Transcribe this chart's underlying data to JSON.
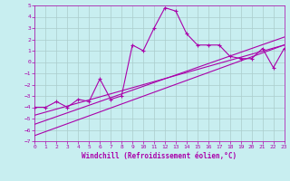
{
  "xlabel": "Windchill (Refroidissement éolien,°C)",
  "xlim": [
    0,
    23
  ],
  "ylim": [
    -7,
    5
  ],
  "xticks": [
    0,
    1,
    2,
    3,
    4,
    5,
    6,
    7,
    8,
    9,
    10,
    11,
    12,
    13,
    14,
    15,
    16,
    17,
    18,
    19,
    20,
    21,
    22,
    23
  ],
  "yticks": [
    -7,
    -6,
    -5,
    -4,
    -3,
    -2,
    -1,
    0,
    1,
    2,
    3,
    4,
    5
  ],
  "bg_color": "#c8eef0",
  "line_color": "#aa00aa",
  "grid_color": "#aacccc",
  "line1_x": [
    0,
    1,
    2,
    3,
    4,
    5,
    6,
    7,
    8,
    9,
    10,
    11,
    12,
    13,
    14,
    15,
    16,
    17,
    18,
    19,
    20,
    21,
    22,
    23
  ],
  "line1_y": [
    -4.0,
    -4.0,
    -3.5,
    -4.0,
    -3.3,
    -3.5,
    -1.5,
    -3.3,
    -3.0,
    1.5,
    1.0,
    3.0,
    4.8,
    4.5,
    2.5,
    1.5,
    1.5,
    1.5,
    0.5,
    0.3,
    0.3,
    1.2,
    -0.5,
    1.2
  ],
  "line2_x": [
    0,
    23
  ],
  "line2_y": [
    -4.7,
    1.5
  ],
  "line3_x": [
    0,
    23
  ],
  "line3_y": [
    -5.5,
    2.2
  ],
  "line4_x": [
    0,
    23
  ],
  "line4_y": [
    -6.5,
    1.5
  ]
}
